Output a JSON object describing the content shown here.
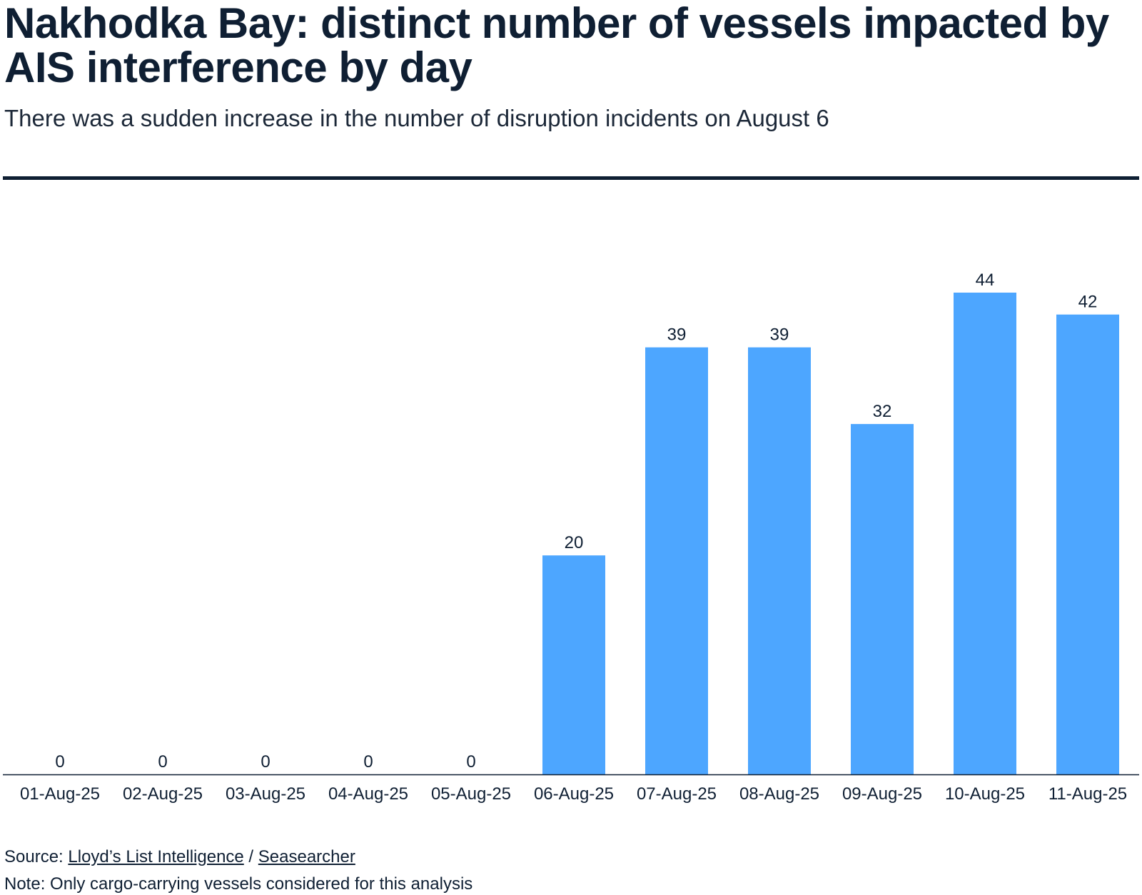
{
  "header": {
    "title": "Nakhodka Bay: distinct number of vessels impacted by AIS interference by day",
    "subtitle": "There was a sudden increase in the number of disruption incidents on August 6"
  },
  "footer": {
    "source_prefix": "Source: ",
    "source_link_1": "Lloyd’s List Intelligence",
    "source_separator": " / ",
    "source_link_2": "Seasearcher",
    "note": "Note: Only cargo-carrying vessels considered for this analysis"
  },
  "colors": {
    "bar": "#4da6ff",
    "text": "#0f1f33",
    "axis": "#0f1f33"
  },
  "chart_data": {
    "type": "bar",
    "title": "Nakhodka Bay: distinct number of vessels impacted by AIS interference by day",
    "subtitle": "There was a sudden increase in the number of disruption incidents on August 6",
    "categories": [
      "01-Aug-25",
      "02-Aug-25",
      "03-Aug-25",
      "04-Aug-25",
      "05-Aug-25",
      "06-Aug-25",
      "07-Aug-25",
      "08-Aug-25",
      "09-Aug-25",
      "10-Aug-25",
      "11-Aug-25"
    ],
    "values": [
      0,
      0,
      0,
      0,
      0,
      20,
      39,
      39,
      32,
      44,
      42
    ],
    "data_labels": true,
    "ylim": [
      0,
      44
    ],
    "grid": false,
    "legend": "none"
  }
}
